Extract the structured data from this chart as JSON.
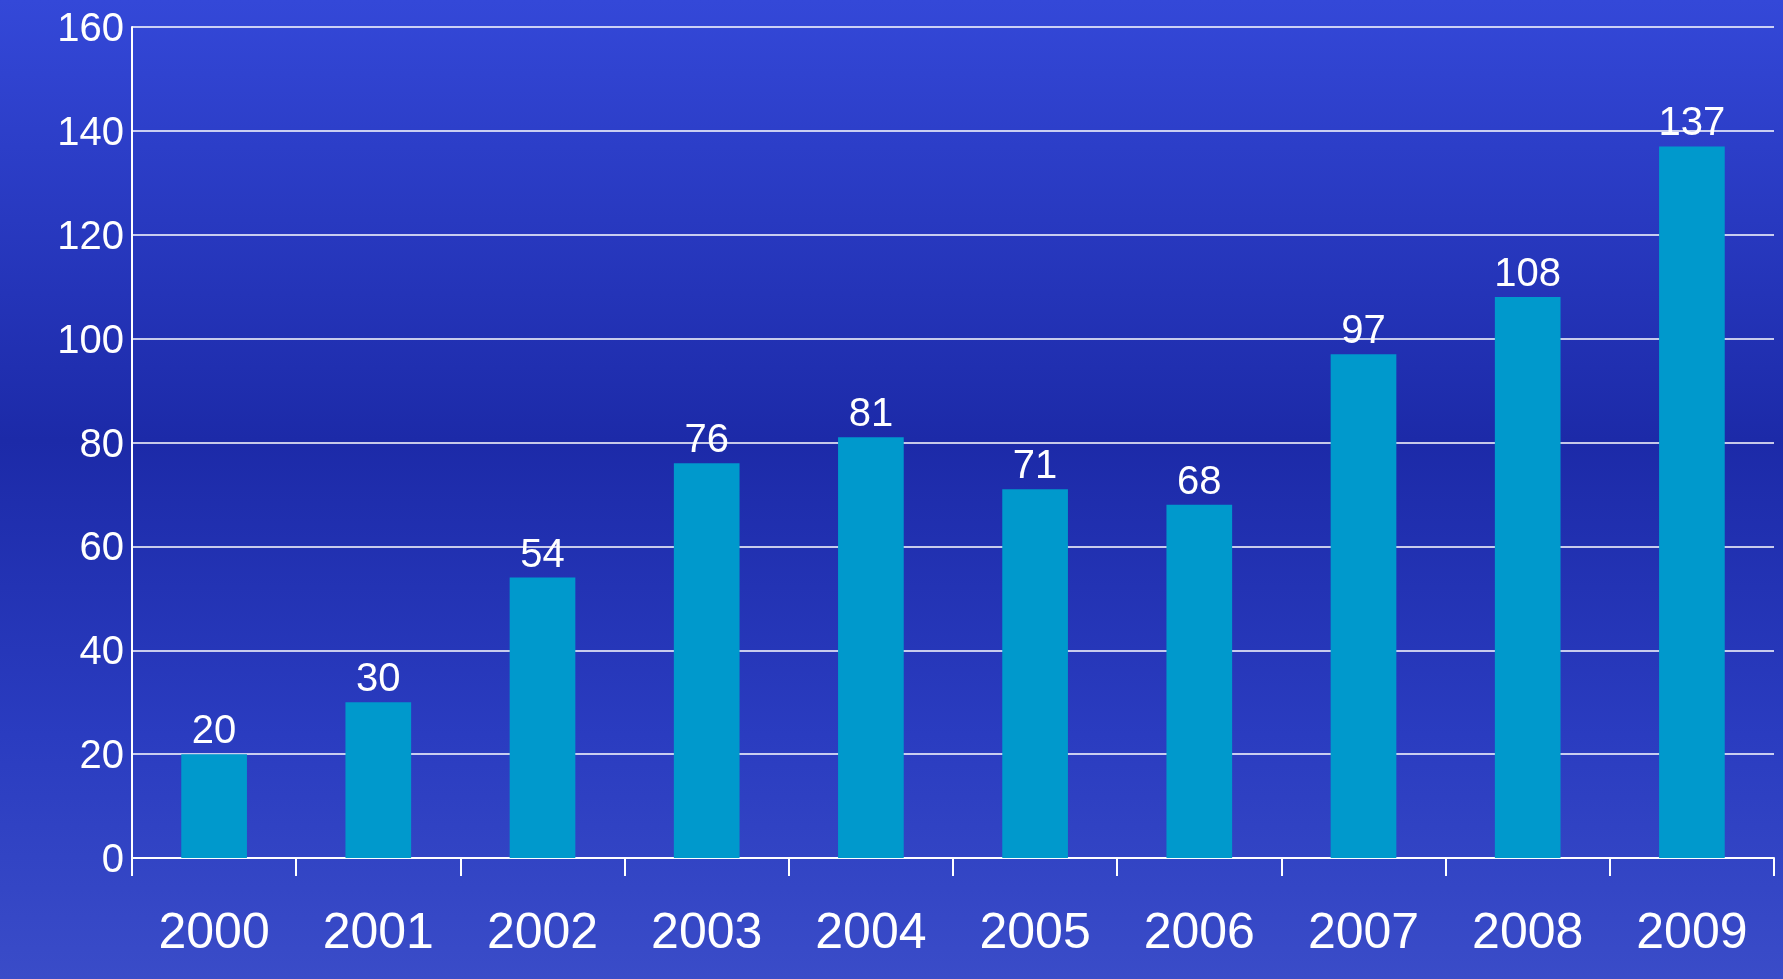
{
  "chart_data": {
    "type": "bar",
    "categories": [
      "2000",
      "2001",
      "2002",
      "2003",
      "2004",
      "2005",
      "2006",
      "2007",
      "2008",
      "2009"
    ],
    "values": [
      20,
      30,
      54,
      76,
      81,
      71,
      68,
      97,
      108,
      137
    ],
    "color": "#0099cc",
    "ylim": [
      0,
      160
    ],
    "yticks": [
      0,
      20,
      40,
      60,
      80,
      100,
      120,
      140,
      160
    ],
    "grid": "y",
    "data_labels": true
  }
}
